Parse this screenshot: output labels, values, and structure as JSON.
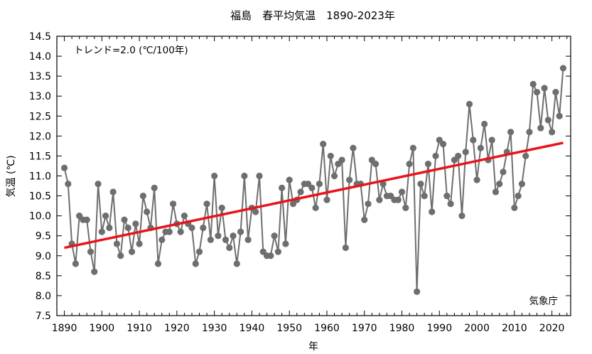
{
  "chart_data": {
    "type": "line",
    "title": "福島　春平均気温　1890-2023年",
    "xlabel": "年",
    "ylabel": "気温 (℃)",
    "xlim": [
      1888,
      2025
    ],
    "ylim": [
      7.5,
      14.5
    ],
    "x_ticks": [
      1890,
      1900,
      1910,
      1920,
      1930,
      1940,
      1950,
      1960,
      1970,
      1980,
      1990,
      2000,
      2010,
      2020
    ],
    "y_ticks": [
      "7.5",
      "8.0",
      "8.5",
      "9.0",
      "9.5",
      "10.0",
      "10.5",
      "11.0",
      "11.5",
      "12.0",
      "12.5",
      "13.0",
      "13.5",
      "14.0",
      "14.5"
    ],
    "grid": false,
    "trend_label": "トレンド=2.0 (℃/100年)",
    "source_label": "気象庁",
    "colors": {
      "series": "#6e6e6e",
      "trend": "#e8141c"
    },
    "series": [
      {
        "x": [
          1890,
          1891,
          1892,
          1893,
          1894,
          1895,
          1896,
          1897,
          1898,
          1899,
          1900,
          1901,
          1902,
          1903,
          1904,
          1905,
          1906,
          1907,
          1908,
          1909,
          1910,
          1911,
          1912,
          1913,
          1914,
          1915,
          1916,
          1917,
          1918,
          1919,
          1920,
          1921,
          1922,
          1923,
          1924,
          1925,
          1926,
          1927,
          1928,
          1929,
          1930,
          1931,
          1932,
          1933,
          1934,
          1935,
          1936,
          1937,
          1938,
          1939,
          1940,
          1941,
          1942,
          1943,
          1944,
          1945,
          1946,
          1947,
          1948,
          1949,
          1950,
          1951,
          1952,
          1953,
          1954,
          1955,
          1956,
          1957,
          1958,
          1959,
          1960,
          1961,
          1962,
          1963,
          1964,
          1965,
          1966,
          1967,
          1968,
          1969,
          1970,
          1971,
          1972,
          1973,
          1974,
          1975,
          1976,
          1977,
          1978,
          1979,
          1980,
          1981,
          1982,
          1983,
          1984,
          1985,
          1986,
          1987,
          1988,
          1989,
          1990,
          1991,
          1992,
          1993,
          1994,
          1995,
          1996,
          1997,
          1998,
          1999,
          2000,
          2001,
          2002,
          2003,
          2004,
          2005,
          2006,
          2007,
          2008,
          2009,
          2010,
          2011,
          2012,
          2013,
          2014,
          2015,
          2016,
          2017,
          2018,
          2019,
          2020,
          2021,
          2022,
          2023
        ],
        "values": [
          11.2,
          10.8,
          9.3,
          8.8,
          10.0,
          9.9,
          9.9,
          9.1,
          8.6,
          10.8,
          9.6,
          10.0,
          9.7,
          10.6,
          9.3,
          9.0,
          9.9,
          9.7,
          9.1,
          9.8,
          9.3,
          10.5,
          10.1,
          9.7,
          10.7,
          8.8,
          9.4,
          9.6,
          9.6,
          10.3,
          9.8,
          9.6,
          10.0,
          9.8,
          9.7,
          8.8,
          9.1,
          9.7,
          10.3,
          9.4,
          11.0,
          9.5,
          10.2,
          9.4,
          9.2,
          9.5,
          8.8,
          9.6,
          11.0,
          9.4,
          10.2,
          10.1,
          11.0,
          9.1,
          9.0,
          9.0,
          9.5,
          9.1,
          10.7,
          9.3,
          10.9,
          10.3,
          10.4,
          10.6,
          10.8,
          10.8,
          10.7,
          10.2,
          10.8,
          11.8,
          10.4,
          11.5,
          11.0,
          11.3,
          11.4,
          9.2,
          10.9,
          11.7,
          10.8,
          10.8,
          9.9,
          10.3,
          11.4,
          11.3,
          10.4,
          10.8,
          10.5,
          10.5,
          10.4,
          10.4,
          10.6,
          10.2,
          11.3,
          11.7,
          8.1,
          10.8,
          10.5,
          11.3,
          10.1,
          11.5,
          11.9,
          11.8,
          10.5,
          10.3,
          11.4,
          11.5,
          10.0,
          11.6,
          12.8,
          11.9,
          10.9,
          11.7,
          12.3,
          11.4,
          11.9,
          10.6,
          10.8,
          11.1,
          11.6,
          12.1,
          10.2,
          10.5,
          10.8,
          11.5,
          12.1,
          13.3,
          13.1,
          12.2,
          13.2,
          12.4,
          12.1,
          13.1,
          12.5,
          13.7
        ]
      }
    ],
    "trend": {
      "x": [
        1890,
        2023
      ],
      "values": [
        9.2,
        11.83
      ]
    }
  }
}
